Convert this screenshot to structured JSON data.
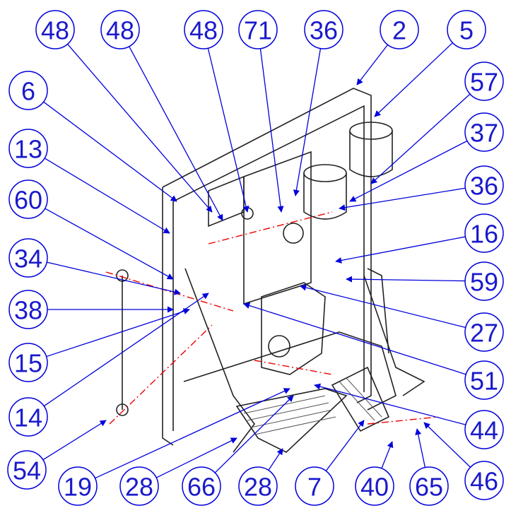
{
  "callouts": [
    {
      "label": "48"
    },
    {
      "label": "48"
    },
    {
      "label": "48"
    },
    {
      "label": "71"
    },
    {
      "label": "36"
    },
    {
      "label": "2"
    },
    {
      "label": "5"
    },
    {
      "label": "6"
    },
    {
      "label": "13"
    },
    {
      "label": "60"
    },
    {
      "label": "34"
    },
    {
      "label": "38"
    },
    {
      "label": "15"
    },
    {
      "label": "14"
    },
    {
      "label": "57"
    },
    {
      "label": "37"
    },
    {
      "label": "36"
    },
    {
      "label": "16"
    },
    {
      "label": "59"
    },
    {
      "label": "27"
    },
    {
      "label": "51"
    },
    {
      "label": "44"
    },
    {
      "label": "46"
    },
    {
      "label": "54"
    },
    {
      "label": "19"
    },
    {
      "label": "28"
    },
    {
      "label": "66"
    },
    {
      "label": "28"
    },
    {
      "label": "7"
    },
    {
      "label": "40"
    },
    {
      "label": "65"
    }
  ]
}
